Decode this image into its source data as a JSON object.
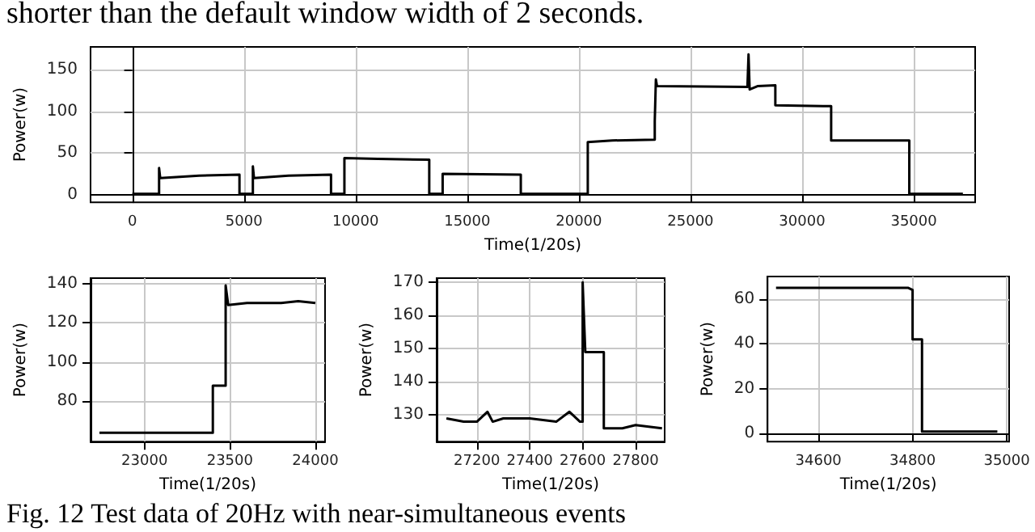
{
  "chart_data": [
    {
      "type": "line",
      "xlabel": "Time(1/20s)",
      "ylabel": "Power(w)",
      "color": "#000000",
      "grid": true,
      "xlim": [
        -1870,
        37750
      ],
      "ylim": [
        -9,
        177
      ],
      "xticks": [
        0,
        5000,
        10000,
        15000,
        20000,
        25000,
        30000,
        35000
      ],
      "yticks": [
        0,
        50,
        100,
        150
      ],
      "annotations": [
        "shorter than the default window width of 2 seconds.",
        "Fig. 12 Test data of 20Hz with near-simultaneous events"
      ],
      "x": [
        0,
        1200,
        1200,
        1250,
        3000,
        4800,
        4800,
        5400,
        5400,
        5450,
        7000,
        8900,
        8900,
        9500,
        9500,
        11000,
        13300,
        13300,
        13900,
        13900,
        17400,
        17400,
        20400,
        20400,
        21500,
        23400,
        23400,
        23450,
        23450,
        23500,
        27550,
        27600,
        27600,
        27650,
        28000,
        28800,
        28800,
        31300,
        31300,
        34800,
        34800,
        37200
      ],
      "values": [
        1,
        1,
        32,
        20,
        23,
        24,
        1,
        1,
        34,
        20,
        23,
        24,
        1,
        1,
        44,
        43,
        42,
        1,
        1,
        25,
        24,
        1,
        1,
        63,
        65,
        66,
        88,
        88,
        138,
        130,
        129,
        129,
        168,
        126,
        130,
        131,
        107,
        106,
        65,
        65,
        1,
        1
      ]
    },
    {
      "type": "line",
      "xlabel": "Time(1/20s)",
      "ylabel": "Power(w)",
      "color": "#000000",
      "grid": true,
      "xlim": [
        22684,
        24057
      ],
      "ylim": [
        59.5,
        142.7
      ],
      "xticks": [
        23000,
        23500,
        24000
      ],
      "yticks": [
        80,
        100,
        120,
        140
      ],
      "x": [
        22736,
        23000,
        23200,
        23400,
        23400,
        23475,
        23475,
        23490,
        23600,
        23800,
        23900,
        24000
      ],
      "values": [
        64,
        64,
        64,
        64,
        88,
        88,
        139,
        129,
        130,
        130,
        131,
        130
      ]
    },
    {
      "type": "line",
      "xlabel": "Time(1/20s)",
      "ylabel": "Power(w)",
      "color": "#000000",
      "grid": true,
      "xlim": [
        27048,
        27910
      ],
      "ylim": [
        122,
        171.3
      ],
      "xticks": [
        27200,
        27400,
        27600,
        27800
      ],
      "yticks": [
        130,
        140,
        150,
        160,
        170
      ],
      "x": [
        27085,
        27150,
        27200,
        27240,
        27260,
        27300,
        27400,
        27500,
        27550,
        27590,
        27600,
        27600,
        27610,
        27680,
        27680,
        27750,
        27800,
        27900
      ],
      "values": [
        129,
        128,
        128,
        131,
        128,
        129,
        129,
        128,
        131,
        128,
        128,
        170,
        149,
        149,
        126,
        126,
        127,
        126
      ]
    },
    {
      "type": "line",
      "xlabel": "Time(1/20s)",
      "ylabel": "Power(w)",
      "color": "#000000",
      "grid": true,
      "xlim": [
        34492,
        35005
      ],
      "ylim": [
        -3.5,
        70
      ],
      "xticks": [
        34600,
        34800,
        35000
      ],
      "yticks": [
        0,
        20,
        40,
        60
      ],
      "x": [
        34510,
        34700,
        34790,
        34800,
        34800,
        34820,
        34820,
        34980
      ],
      "values": [
        65,
        65,
        65,
        64,
        42,
        42,
        1,
        1
      ]
    }
  ]
}
